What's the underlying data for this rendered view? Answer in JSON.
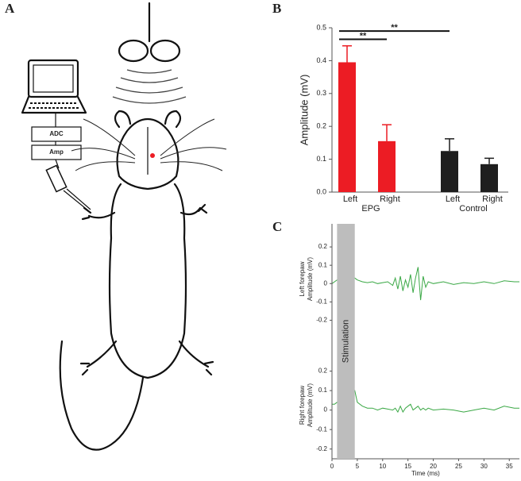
{
  "panels": {
    "a": {
      "label": "A",
      "boxes": [
        "ADC",
        "Amp"
      ]
    },
    "b": {
      "label": "B"
    },
    "c": {
      "label": "C",
      "stimulation": {
        "xlim": [
          1,
          4.5
        ],
        "label": "Stimulation"
      },
      "xlabel": "Time (ms)"
    }
  },
  "chart_data": [
    {
      "type": "grouped_bar",
      "ylabel": "Amplitude (mV)",
      "ylim": [
        0,
        0.5
      ],
      "yticks": [
        {
          "value": 0,
          "label": "0.0"
        },
        0.1,
        0.2,
        0.3,
        0.4,
        0.5
      ],
      "groups": [
        {
          "name": "EPG",
          "color": "#ec1c24",
          "categories": [
            "Left",
            "Right"
          ],
          "values": [
            0.395,
            0.155
          ],
          "errors": [
            0.05,
            0.05
          ]
        },
        {
          "name": "Control",
          "color": "#1e1e1e",
          "categories": [
            "Left",
            "Right"
          ],
          "values": [
            0.125,
            0.085
          ],
          "errors": [
            0.037,
            0.018
          ]
        }
      ],
      "significance": [
        {
          "label": "**",
          "from": [
            0,
            0
          ],
          "to": [
            0,
            1
          ],
          "y": 0.465
        },
        {
          "label": "**",
          "from": [
            0,
            0
          ],
          "to": [
            1,
            0
          ],
          "y": 0.49
        }
      ]
    },
    {
      "type": "line",
      "ylabel": [
        "Left forepaw",
        "Amplitude (mV)"
      ],
      "xlim": [
        0,
        37
      ],
      "ylim": [
        -0.25,
        0.3
      ],
      "yticks": [
        0.2,
        0.1,
        0,
        -0.1,
        -0.2
      ],
      "color": "#3aa845",
      "x": [
        0,
        0.5,
        1,
        4.5,
        5,
        6,
        7,
        8,
        9,
        10,
        11,
        12,
        12.5,
        13,
        13.5,
        14,
        14.5,
        15,
        15.5,
        16,
        16.5,
        17,
        17.5,
        18,
        18.5,
        19,
        20,
        22,
        24,
        26,
        28,
        30,
        32,
        34,
        36,
        37
      ],
      "values": [
        0,
        0.01,
        0.02,
        0.03,
        0.02,
        0.01,
        0.005,
        0.01,
        0,
        0.005,
        0.01,
        -0.01,
        0.03,
        -0.03,
        0.04,
        -0.04,
        0.02,
        -0.02,
        0.05,
        -0.05,
        0.03,
        0.09,
        -0.09,
        0.04,
        -0.02,
        0.01,
        0,
        0.01,
        -0.005,
        0.005,
        0,
        0.01,
        0,
        0.015,
        0.01,
        0.01
      ]
    },
    {
      "type": "line",
      "ylabel": [
        "Right forepaw",
        "Amplitude (mV)"
      ],
      "xlim": [
        0,
        37
      ],
      "ylim": [
        -0.25,
        0.3
      ],
      "yticks": [
        0.2,
        0.1,
        0,
        -0.1,
        -0.2
      ],
      "xticks": [
        0,
        5,
        10,
        15,
        20,
        25,
        30,
        35
      ],
      "color": "#3aa845",
      "x": [
        0,
        0.5,
        1,
        4.5,
        5,
        6,
        7,
        8,
        9,
        10,
        11,
        12,
        12.5,
        13,
        13.5,
        14,
        14.5,
        15,
        15.5,
        16,
        16.5,
        17,
        17.5,
        18,
        18.5,
        19,
        20,
        22,
        24,
        26,
        28,
        30,
        32,
        34,
        36,
        37
      ],
      "values": [
        0.03,
        0.03,
        0.04,
        0.1,
        0.04,
        0.02,
        0.01,
        0.01,
        0,
        0.01,
        0.005,
        0,
        0.01,
        -0.01,
        0.02,
        -0.01,
        0.01,
        0.02,
        0.03,
        0,
        0.01,
        0.02,
        0,
        0.01,
        0,
        0.01,
        0,
        0.005,
        0,
        -0.01,
        0,
        0.01,
        0,
        0.02,
        0.01,
        0.01
      ]
    }
  ]
}
